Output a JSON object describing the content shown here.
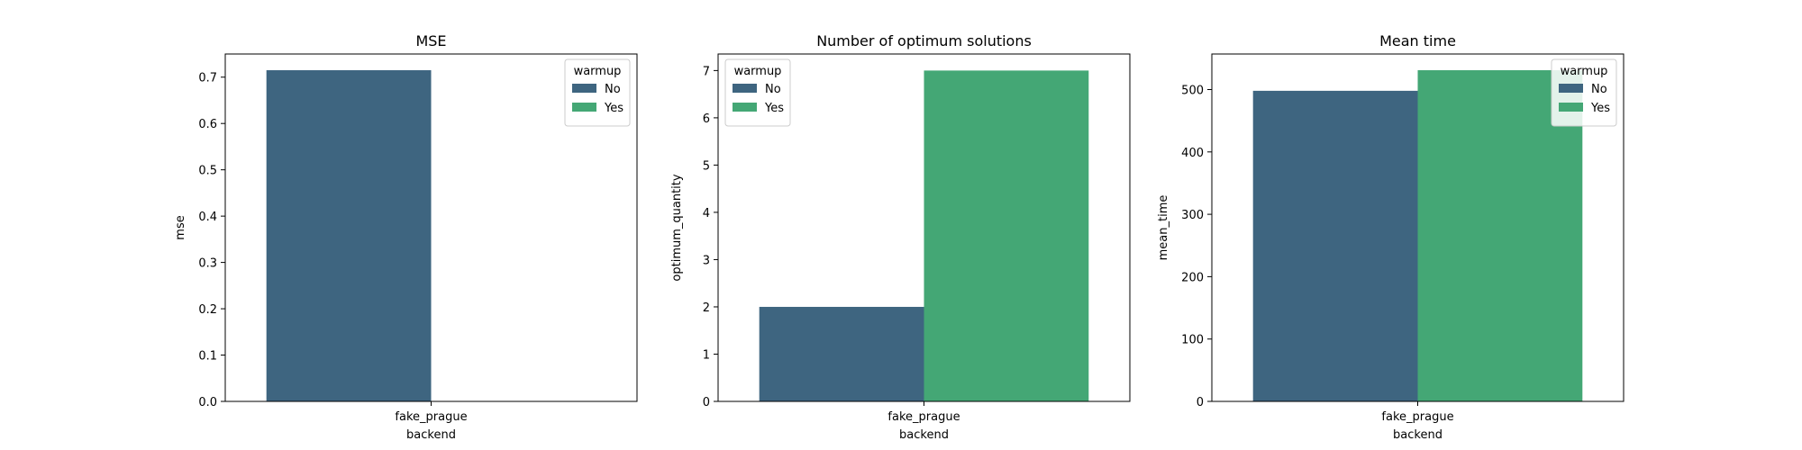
{
  "chart_data": [
    {
      "type": "bar",
      "title": "MSE",
      "xlabel": "backend",
      "ylabel": "mse",
      "categories": [
        "fake_prague"
      ],
      "ylim": [
        0,
        0.75
      ],
      "yticks": [
        "0.0",
        "0.1",
        "0.2",
        "0.3",
        "0.4",
        "0.5",
        "0.6",
        "0.7"
      ],
      "legend": {
        "title": "warmup",
        "placement": "top-right"
      },
      "series": [
        {
          "name": "No",
          "color": "#3e6580",
          "values": [
            0.715
          ]
        },
        {
          "name": "Yes",
          "color": "#44a775",
          "values": [
            null
          ]
        }
      ]
    },
    {
      "type": "bar",
      "title": "Number of optimum solutions",
      "xlabel": "backend",
      "ylabel": "optimum_quantity",
      "categories": [
        "fake_prague"
      ],
      "ylim": [
        0,
        7.35
      ],
      "yticks": [
        "0",
        "1",
        "2",
        "3",
        "4",
        "5",
        "6",
        "7"
      ],
      "legend": {
        "title": "warmup",
        "placement": "top-left"
      },
      "series": [
        {
          "name": "No",
          "color": "#3e6580",
          "values": [
            2
          ]
        },
        {
          "name": "Yes",
          "color": "#44a775",
          "values": [
            7
          ]
        }
      ]
    },
    {
      "type": "bar",
      "title": "Mean time",
      "xlabel": "backend",
      "ylabel": "mean_time",
      "categories": [
        "fake_prague"
      ],
      "ylim": [
        0,
        557
      ],
      "yticks": [
        "0",
        "100",
        "200",
        "300",
        "400",
        "500"
      ],
      "legend": {
        "title": "warmup",
        "placement": "top-right"
      },
      "series": [
        {
          "name": "No",
          "color": "#3e6580",
          "values": [
            498
          ]
        },
        {
          "name": "Yes",
          "color": "#44a775",
          "values": [
            531
          ]
        }
      ]
    }
  ]
}
